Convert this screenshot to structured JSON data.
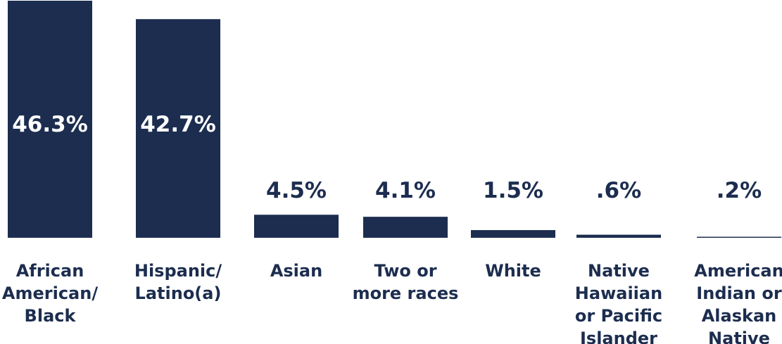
{
  "chart_data": {
    "type": "bar",
    "categories": [
      [
        "African",
        "American/",
        "Black"
      ],
      [
        "Hispanic/",
        "Latino(a)"
      ],
      [
        "Asian"
      ],
      [
        "Two or",
        "more races"
      ],
      [
        "White"
      ],
      [
        "Native",
        "Hawaiian",
        "or Pacific",
        "Islander"
      ],
      [
        "American",
        "Indian or",
        "Alaskan",
        "Native"
      ]
    ],
    "values": [
      46.3,
      42.7,
      4.5,
      4.1,
      1.5,
      0.6,
      0.2
    ],
    "value_labels": [
      "46.3%",
      "42.7%",
      "4.5%",
      "4.1%",
      "1.5%",
      ".6%",
      ".2%"
    ],
    "ylim": [
      0,
      46.3
    ],
    "grid": false,
    "bar_color": "#1c2d4f",
    "text_color": "#1c2d4f",
    "inside_label_color": "#ffffff"
  }
}
